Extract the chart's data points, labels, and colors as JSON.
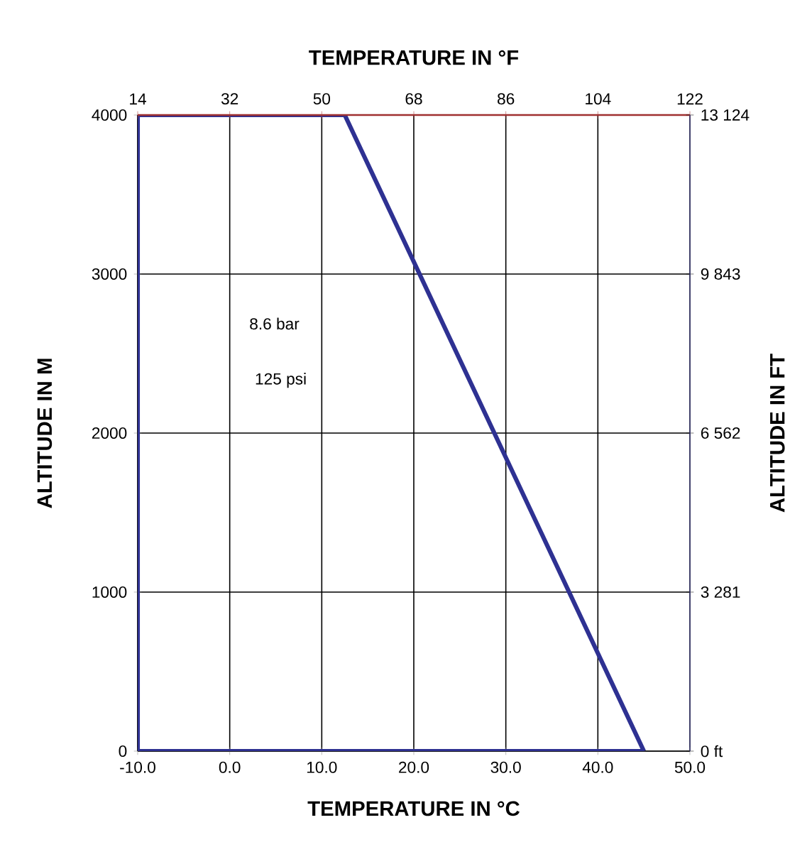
{
  "chart_data": {
    "type": "line",
    "x2label": "TEMPERATURE IN °F",
    "xlabel": "TEMPERATURE IN °C",
    "ylabel": "ALTITUDE IN M",
    "y2label": "ALTITUDE IN FT",
    "annotations": [
      "8.6 bar",
      "125 psi"
    ],
    "series": [
      {
        "color": "#2e3192",
        "x": [
          -10,
          -10,
          12.5,
          45
        ],
        "values": [
          0,
          4000,
          4000,
          0
        ]
      },
      {
        "color": "#2e3192",
        "x": [
          -10,
          45
        ],
        "values": [
          0,
          0
        ]
      }
    ],
    "xlim": [
      -10,
      50
    ],
    "xticks": [
      {
        "value": -10,
        "label": "-10.0"
      },
      {
        "value": 0,
        "label": "0.0"
      },
      {
        "value": 10,
        "label": "10.0"
      },
      {
        "value": 20,
        "label": "20.0"
      },
      {
        "value": 30,
        "label": "30.0"
      },
      {
        "value": 40,
        "label": "40.0"
      },
      {
        "value": 50,
        "label": "50.0"
      }
    ],
    "x2lim": [
      14,
      122
    ],
    "x2ticks": [
      14,
      32,
      50,
      68,
      86,
      104,
      122
    ],
    "ylim": [
      0,
      4000
    ],
    "yticks": [
      0,
      1000,
      2000,
      3000,
      4000
    ],
    "y2lim": [
      0,
      13124
    ],
    "y2ticks": [
      {
        "value": 0,
        "label": "0 ft"
      },
      {
        "value": 3281,
        "label": "3 281"
      },
      {
        "value": 6562,
        "label": "6 562"
      },
      {
        "value": 9843,
        "label": "9 843"
      },
      {
        "value": 13124,
        "label": "13 124"
      }
    ],
    "grid": true,
    "marker": "none",
    "line_style": "solid"
  }
}
